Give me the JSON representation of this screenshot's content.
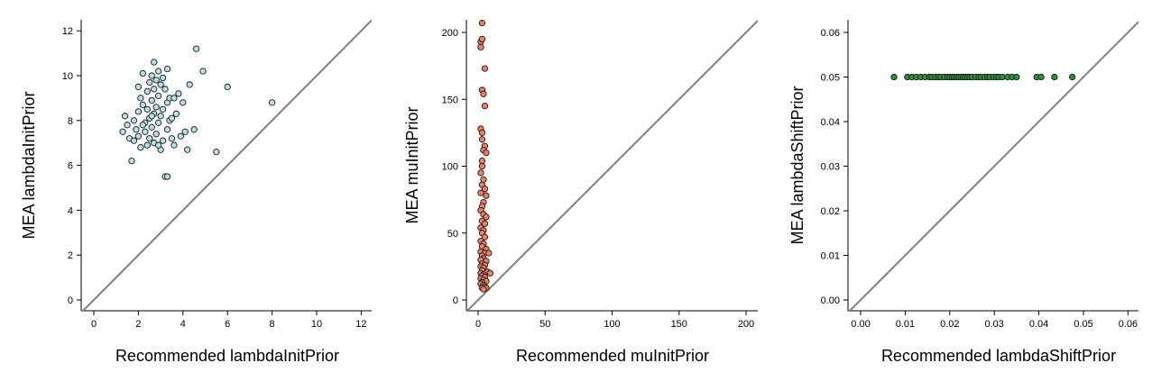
{
  "chart_data": [
    {
      "type": "scatter",
      "xlabel": "Recommended lambdaInitPrior",
      "ylabel": "MEA lambdaInitPrior",
      "xlim": [
        0,
        12
      ],
      "ylim": [
        0,
        12
      ],
      "xticks": [
        "0",
        "2",
        "4",
        "6",
        "8",
        "10",
        "12"
      ],
      "yticks": [
        "0",
        "2",
        "4",
        "6",
        "8",
        "10",
        "12"
      ],
      "reference_line": "y = x",
      "grid": false,
      "point_color": "#b9dfe6",
      "line_color": "#7f7f7f",
      "points": [
        [
          1.3,
          7.5
        ],
        [
          1.4,
          8.2
        ],
        [
          1.5,
          7.8
        ],
        [
          1.6,
          7.2
        ],
        [
          1.7,
          6.2
        ],
        [
          1.8,
          8.0
        ],
        [
          1.9,
          7.6
        ],
        [
          2.0,
          8.4
        ],
        [
          2.0,
          7.3
        ],
        [
          2.1,
          6.8
        ],
        [
          2.1,
          9.0
        ],
        [
          2.2,
          10.1
        ],
        [
          2.2,
          8.7
        ],
        [
          2.3,
          7.9
        ],
        [
          2.3,
          7.5
        ],
        [
          2.4,
          9.3
        ],
        [
          2.4,
          6.9
        ],
        [
          2.5,
          9.7
        ],
        [
          2.5,
          8.1
        ],
        [
          2.5,
          7.2
        ],
        [
          2.6,
          10.0
        ],
        [
          2.6,
          8.9
        ],
        [
          2.6,
          7.7
        ],
        [
          2.7,
          10.6
        ],
        [
          2.7,
          9.4
        ],
        [
          2.7,
          8.3
        ],
        [
          2.7,
          7.0
        ],
        [
          2.8,
          9.8
        ],
        [
          2.8,
          8.6
        ],
        [
          2.8,
          7.4
        ],
        [
          2.9,
          10.2
        ],
        [
          2.9,
          9.1
        ],
        [
          2.9,
          7.9
        ],
        [
          3.0,
          9.6
        ],
        [
          3.0,
          8.2
        ],
        [
          3.0,
          6.7
        ],
        [
          3.1,
          9.9
        ],
        [
          3.1,
          8.5
        ],
        [
          3.1,
          7.1
        ],
        [
          3.2,
          9.4
        ],
        [
          3.2,
          5.5
        ],
        [
          3.3,
          10.3
        ],
        [
          3.3,
          8.8
        ],
        [
          3.3,
          7.6
        ],
        [
          3.3,
          5.5
        ],
        [
          3.4,
          9.0
        ],
        [
          3.4,
          8.0
        ],
        [
          3.5,
          8.1
        ],
        [
          3.6,
          6.9
        ],
        [
          3.7,
          8.3
        ],
        [
          3.8,
          9.2
        ],
        [
          3.9,
          7.3
        ],
        [
          4.0,
          8.8
        ],
        [
          4.1,
          7.5
        ],
        [
          4.2,
          6.7
        ],
        [
          4.3,
          9.6
        ],
        [
          4.5,
          7.6
        ],
        [
          4.6,
          11.2
        ],
        [
          4.9,
          10.2
        ],
        [
          5.5,
          6.6
        ],
        [
          6.0,
          9.5
        ],
        [
          8.0,
          8.8
        ],
        [
          1.8,
          7.1
        ],
        [
          2.2,
          7.8
        ],
        [
          2.4,
          8.5
        ],
        [
          2.9,
          6.9
        ],
        [
          3.5,
          7.2
        ],
        [
          2.0,
          9.5
        ],
        [
          3.6,
          9.0
        ],
        [
          2.6,
          8.2
        ]
      ]
    },
    {
      "type": "scatter",
      "xlabel": "Recommended muInitPrior",
      "ylabel": "MEA muInitPrior",
      "xlim": [
        0,
        200
      ],
      "ylim": [
        0,
        200
      ],
      "xticks": [
        "0",
        "50",
        "100",
        "150",
        "200"
      ],
      "yticks": [
        "0",
        "50",
        "100",
        "150",
        "200"
      ],
      "reference_line": "y = x",
      "grid": false,
      "point_color": "#ef7f62",
      "line_color": "#7f7f7f",
      "points": [
        [
          3,
          207
        ],
        [
          2,
          193
        ],
        [
          2,
          189
        ],
        [
          3,
          195
        ],
        [
          5,
          173
        ],
        [
          3,
          157
        ],
        [
          4,
          154
        ],
        [
          5,
          145
        ],
        [
          2,
          128
        ],
        [
          3,
          125
        ],
        [
          3,
          120
        ],
        [
          5,
          115
        ],
        [
          4,
          112
        ],
        [
          6,
          110
        ],
        [
          3,
          104
        ],
        [
          3,
          100
        ],
        [
          2,
          95
        ],
        [
          4,
          90
        ],
        [
          3,
          86
        ],
        [
          5,
          83
        ],
        [
          2,
          80
        ],
        [
          6,
          78
        ],
        [
          4,
          73
        ],
        [
          3,
          70
        ],
        [
          2,
          67
        ],
        [
          4,
          64
        ],
        [
          6,
          62
        ],
        [
          3,
          59
        ],
        [
          5,
          57
        ],
        [
          2,
          54
        ],
        [
          4,
          52
        ],
        [
          3,
          50
        ],
        [
          5,
          47
        ],
        [
          2,
          44
        ],
        [
          4,
          42
        ],
        [
          3,
          40
        ],
        [
          6,
          38
        ],
        [
          2,
          36
        ],
        [
          5,
          35
        ],
        [
          8,
          35
        ],
        [
          3,
          33
        ],
        [
          4,
          31
        ],
        [
          2,
          30
        ],
        [
          6,
          29
        ],
        [
          3,
          27
        ],
        [
          5,
          26
        ],
        [
          2,
          25
        ],
        [
          4,
          24
        ],
        [
          3,
          22
        ],
        [
          7,
          21
        ],
        [
          2,
          20
        ],
        [
          9,
          20
        ],
        [
          4,
          19
        ],
        [
          3,
          18
        ],
        [
          5,
          17
        ],
        [
          2,
          16
        ],
        [
          4,
          15
        ],
        [
          6,
          14
        ],
        [
          3,
          13
        ],
        [
          2,
          12
        ],
        [
          4,
          11
        ],
        [
          5,
          10
        ],
        [
          3,
          9
        ],
        [
          6,
          9
        ],
        [
          4,
          8
        ]
      ]
    },
    {
      "type": "scatter",
      "xlabel": "Recommended lambdaShiftPrior",
      "ylabel": "MEA lambdaShiftPrior",
      "xlim": [
        0,
        0.06
      ],
      "ylim": [
        0,
        0.06
      ],
      "xticks": [
        "0.00",
        "0.01",
        "0.02",
        "0.03",
        "0.04",
        "0.05",
        "0.06"
      ],
      "yticks": [
        "0.00",
        "0.01",
        "0.02",
        "0.03",
        "0.04",
        "0.05",
        "0.06"
      ],
      "reference_line": "y = x",
      "grid": false,
      "point_color": "#2f8f3a",
      "line_color": "#7f7f7f",
      "points": [
        [
          0.0075,
          0.05
        ],
        [
          0.0105,
          0.05
        ],
        [
          0.0115,
          0.05
        ],
        [
          0.0125,
          0.05
        ],
        [
          0.0135,
          0.05
        ],
        [
          0.0145,
          0.05
        ],
        [
          0.0155,
          0.05
        ],
        [
          0.016,
          0.05
        ],
        [
          0.0168,
          0.05
        ],
        [
          0.0175,
          0.05
        ],
        [
          0.018,
          0.05
        ],
        [
          0.0188,
          0.05
        ],
        [
          0.0195,
          0.05
        ],
        [
          0.02,
          0.05
        ],
        [
          0.0205,
          0.05
        ],
        [
          0.021,
          0.05
        ],
        [
          0.0215,
          0.05
        ],
        [
          0.022,
          0.05
        ],
        [
          0.0225,
          0.05
        ],
        [
          0.023,
          0.05
        ],
        [
          0.0235,
          0.05
        ],
        [
          0.024,
          0.05
        ],
        [
          0.0245,
          0.05
        ],
        [
          0.025,
          0.05
        ],
        [
          0.0258,
          0.05
        ],
        [
          0.0265,
          0.05
        ],
        [
          0.027,
          0.05
        ],
        [
          0.0278,
          0.05
        ],
        [
          0.0285,
          0.05
        ],
        [
          0.029,
          0.05
        ],
        [
          0.0298,
          0.05
        ],
        [
          0.0305,
          0.05
        ],
        [
          0.031,
          0.05
        ],
        [
          0.0318,
          0.05
        ],
        [
          0.033,
          0.05
        ],
        [
          0.034,
          0.05
        ],
        [
          0.035,
          0.05
        ],
        [
          0.0395,
          0.05
        ],
        [
          0.0405,
          0.05
        ],
        [
          0.0435,
          0.05
        ],
        [
          0.0475,
          0.05
        ]
      ]
    }
  ]
}
